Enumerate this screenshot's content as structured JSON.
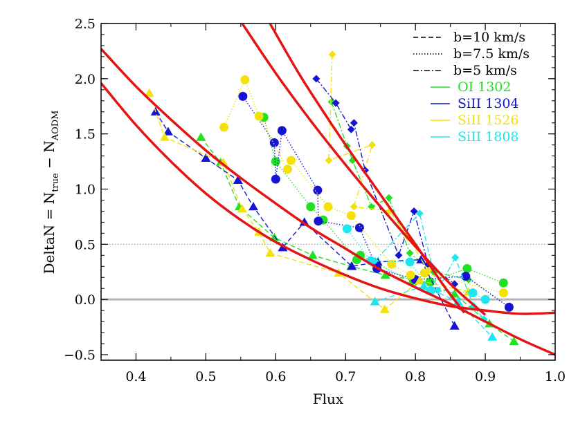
{
  "chart_data": {
    "type": "scatter",
    "title": "",
    "xlabel": "Flux",
    "ylabel": {
      "prefix": "DeltaN = N",
      "sub1": "true",
      "mid": " − N",
      "sub2": "AODM"
    },
    "xlim": [
      0.35,
      1.0
    ],
    "ylim": [
      -0.55,
      2.5
    ],
    "xticks": [
      0.4,
      0.5,
      0.6,
      0.7,
      0.8,
      0.9,
      1.0
    ],
    "xtick_labels": [
      "0.4",
      "0.5",
      "0.6",
      "0.7",
      "0.8",
      "0.9",
      "1.0"
    ],
    "yticks": [
      -0.5,
      0.0,
      0.5,
      1.0,
      1.5,
      2.0,
      2.5
    ],
    "ytick_labels": [
      "−0.5",
      "0.0",
      "0.5",
      "1.0",
      "1.5",
      "2.0",
      "2.5"
    ],
    "grid": false,
    "legend_position": "top-right",
    "legend_linestyles": [
      {
        "label": "b=10 km/s",
        "dash": "dashed"
      },
      {
        "label": "b=7.5 km/s",
        "dash": "dotted"
      },
      {
        "label": "b=5 km/s",
        "dash": "dashdot"
      }
    ],
    "legend_species": [
      {
        "label": "OI 1302",
        "color": "#22e022"
      },
      {
        "label": "SiII 1304",
        "color": "#1414d2"
      },
      {
        "label": "SiII 1526",
        "color": "#f5e10a"
      },
      {
        "label": "SiII 1808",
        "color": "#1ee6f0"
      }
    ],
    "reference_lines": [
      {
        "y": 0.0,
        "color": "#b4b4b4",
        "style": "solid"
      },
      {
        "y": 0.5,
        "color": "#a0a0a0",
        "style": "dotted"
      }
    ],
    "fit_curves": [
      {
        "name": "",
        "color": "#e41414",
        "x": [
          0.35,
          0.4,
          0.45,
          0.5,
          0.55,
          0.6,
          0.65,
          0.7,
          0.75,
          0.8,
          0.85,
          0.9,
          0.95,
          1.0
        ],
        "y": [
          2.27,
          1.93,
          1.63,
          1.35,
          1.1,
          0.87,
          0.65,
          0.46,
          0.27,
          0.11,
          -0.04,
          -0.2,
          -0.36,
          -0.5
        ]
      },
      {
        "name": "",
        "color": "#e41414",
        "x": [
          0.35,
          0.4,
          0.45,
          0.5,
          0.55,
          0.6,
          0.65,
          0.7,
          0.75,
          0.8,
          0.85,
          0.9,
          0.95,
          1.0
        ],
        "y": [
          1.96,
          1.58,
          1.25,
          0.96,
          0.72,
          0.52,
          0.36,
          0.22,
          0.1,
          0.01,
          -0.06,
          -0.1,
          -0.13,
          -0.12
        ]
      },
      {
        "name": "",
        "color": "#e41414",
        "x": [
          0.55,
          0.6,
          0.65,
          0.7,
          0.75,
          0.8,
          0.85,
          0.9
        ],
        "y": [
          2.52,
          2.05,
          1.62,
          1.22,
          0.84,
          0.48,
          0.14,
          -0.14
        ]
      },
      {
        "name": "",
        "color": "#e41414",
        "x": [
          0.59,
          0.63,
          0.66,
          0.7,
          0.75,
          0.8,
          0.84,
          0.87
        ],
        "y": [
          2.52,
          2.08,
          1.78,
          1.4,
          0.95,
          0.5,
          0.13,
          -0.12
        ]
      }
    ],
    "series": [
      {
        "species": "OI 1302",
        "b": "b=10 km/s",
        "marker": "triangle",
        "color": "#22e022",
        "x": [
          0.493,
          0.521,
          0.548,
          0.598,
          0.653,
          0.708,
          0.757,
          0.806,
          0.856,
          0.906,
          0.941
        ],
        "y": [
          1.47,
          1.24,
          0.84,
          0.56,
          0.4,
          0.3,
          0.22,
          0.17,
          0.05,
          -0.22,
          -0.38
        ]
      },
      {
        "species": "OI 1302",
        "b": "b=7.5 km/s",
        "marker": "circle",
        "color": "#22e022",
        "x": [
          0.583,
          0.6,
          0.65,
          0.668,
          0.716,
          0.721,
          0.742,
          0.797,
          0.821,
          0.874,
          0.926
        ],
        "y": [
          1.65,
          1.25,
          0.84,
          0.72,
          0.36,
          0.4,
          0.33,
          0.16,
          0.16,
          0.28,
          0.15
        ]
      },
      {
        "species": "OI 1302",
        "b": "b=5 km/s",
        "marker": "diamond",
        "color": "#22e022",
        "x": [
          0.68,
          0.702,
          0.71,
          0.737,
          0.762,
          0.792,
          0.826,
          0.876
        ],
        "y": [
          1.79,
          1.39,
          1.26,
          0.84,
          0.92,
          0.42,
          0.25,
          0.18
        ]
      },
      {
        "species": "SiII 1304",
        "b": "b=10 km/s",
        "marker": "triangle",
        "color": "#1414d2",
        "x": [
          0.428,
          0.446,
          0.5,
          0.546,
          0.568,
          0.61,
          0.641,
          0.709,
          0.746,
          0.808,
          0.856
        ],
        "y": [
          1.7,
          1.52,
          1.28,
          1.08,
          0.84,
          0.47,
          0.7,
          0.3,
          0.34,
          0.36,
          -0.24
        ]
      },
      {
        "species": "SiII 1304",
        "b": "b=7.5 km/s",
        "marker": "circle",
        "color": "#1414d2",
        "x": [
          0.553,
          0.598,
          0.6,
          0.609,
          0.66,
          0.661,
          0.72,
          0.745,
          0.8,
          0.872,
          0.934
        ],
        "y": [
          1.84,
          1.42,
          1.09,
          1.53,
          0.99,
          0.71,
          0.65,
          0.28,
          0.18,
          0.21,
          -0.07
        ]
      },
      {
        "species": "SiII 1304",
        "b": "b=5 km/s",
        "marker": "diamond",
        "color": "#1414d2",
        "x": [
          0.658,
          0.686,
          0.708,
          0.712,
          0.728,
          0.776,
          0.798,
          0.818,
          0.856
        ],
        "y": [
          2.0,
          1.78,
          1.54,
          1.6,
          1.17,
          0.4,
          0.8,
          0.32,
          0.14
        ]
      },
      {
        "species": "SiII 1526",
        "b": "b=10 km/s",
        "marker": "triangle",
        "color": "#f5e10a",
        "x": [
          0.419,
          0.441,
          0.525,
          0.552,
          0.576,
          0.592,
          0.69,
          0.756,
          0.806,
          0.876
        ],
        "y": [
          1.87,
          1.47,
          1.24,
          0.82,
          0.61,
          0.42,
          0.24,
          -0.09,
          0.17,
          0.07
        ]
      },
      {
        "species": "SiII 1526",
        "b": "b=7.5 km/s",
        "marker": "circle",
        "color": "#f5e10a",
        "x": [
          0.526,
          0.556,
          0.576,
          0.617,
          0.622,
          0.675,
          0.708,
          0.766,
          0.793,
          0.813,
          0.926
        ],
        "y": [
          1.56,
          1.99,
          1.66,
          1.18,
          1.26,
          0.84,
          0.76,
          0.32,
          0.22,
          0.24,
          0.06
        ]
      },
      {
        "species": "SiII 1526",
        "b": "b=5 km/s",
        "marker": "diamond",
        "color": "#f5e10a",
        "x": [
          0.681,
          0.676,
          0.738,
          0.712,
          0.763,
          0.79,
          0.818
        ],
        "y": [
          2.22,
          1.26,
          1.4,
          0.84,
          0.8,
          0.56,
          0.26
        ]
      },
      {
        "species": "SiII 1808",
        "b": "b=10 km/s",
        "marker": "triangle",
        "color": "#1ee6f0",
        "x": [
          0.742,
          0.812,
          0.861,
          0.91
        ],
        "y": [
          -0.02,
          0.12,
          -0.02,
          -0.34
        ]
      },
      {
        "species": "SiII 1808",
        "b": "b=7.5 km/s",
        "marker": "circle",
        "color": "#1ee6f0",
        "x": [
          0.702,
          0.736,
          0.792,
          0.822,
          0.882,
          0.9
        ],
        "y": [
          0.64,
          0.35,
          0.34,
          0.08,
          0.06,
          0.0
        ]
      },
      {
        "species": "SiII 1808",
        "b": "b=5 km/s",
        "marker": "diamond",
        "color": "#1ee6f0",
        "x": [
          0.742,
          0.806,
          0.832,
          0.857,
          0.883,
          0.898
        ],
        "y": [
          0.35,
          0.78,
          0.08,
          0.38,
          -0.06,
          -0.18
        ]
      }
    ]
  }
}
